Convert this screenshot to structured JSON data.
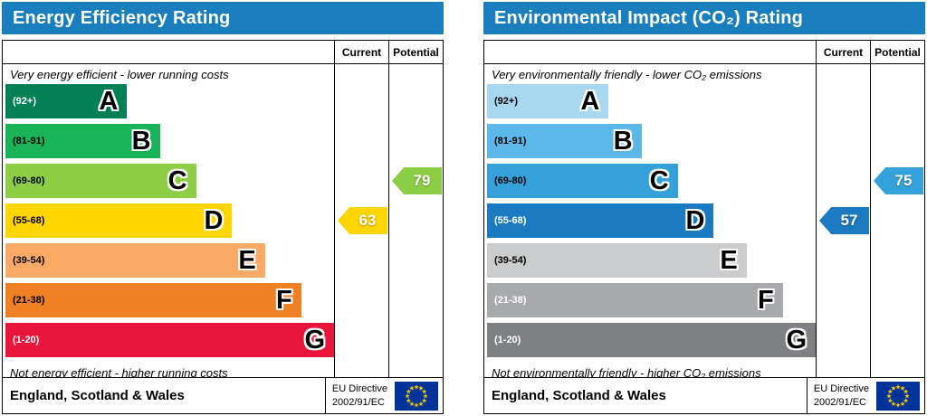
{
  "charts": [
    {
      "title": "Energy Efficiency Rating",
      "header_color": "#1a7dbe",
      "columns": {
        "current": "Current",
        "potential": "Potential"
      },
      "top_caption": "Very energy efficient - lower running costs",
      "bottom_caption": "Not energy efficient - higher running costs",
      "bands": [
        {
          "range": "(92+)",
          "letter": "A",
          "color": "#008054",
          "range_color": "#ffffff",
          "width": "37%"
        },
        {
          "range": "(81-91)",
          "letter": "B",
          "color": "#19b459",
          "range_color": "#000000",
          "width": "47%"
        },
        {
          "range": "(69-80)",
          "letter": "C",
          "color": "#8dce46",
          "range_color": "#000000",
          "width": "58%"
        },
        {
          "range": "(55-68)",
          "letter": "D",
          "color": "#ffd500",
          "range_color": "#000000",
          "width": "69%"
        },
        {
          "range": "(39-54)",
          "letter": "E",
          "color": "#fbaa65",
          "range_color": "#000000",
          "width": "79%"
        },
        {
          "range": "(21-38)",
          "letter": "F",
          "color": "#ef8023",
          "range_color": "#000000",
          "width": "90%"
        },
        {
          "range": "(1-20)",
          "letter": "G",
          "color": "#e9153b",
          "range_color": "#ffffff",
          "width": "100%"
        }
      ],
      "current": {
        "value": "63",
        "band_index": 3,
        "color": "#ffd500"
      },
      "potential": {
        "value": "79",
        "band_index": 2,
        "color": "#8dce46"
      },
      "footer": {
        "region": "England, Scotland & Wales",
        "directive_line1": "EU Directive",
        "directive_line2": "2002/91/EC"
      }
    },
    {
      "title": "Environmental Impact (CO₂) Rating",
      "header_color": "#1a7dbe",
      "columns": {
        "current": "Current",
        "potential": "Potential"
      },
      "top_caption": "Very environmentally friendly - lower CO₂ emissions",
      "bottom_caption": "Not environmentally friendly - higher CO₂ emissions",
      "bands": [
        {
          "range": "(92+)",
          "letter": "A",
          "color": "#a8d7f0",
          "range_color": "#000000",
          "width": "37%"
        },
        {
          "range": "(81-91)",
          "letter": "B",
          "color": "#5cb8e9",
          "range_color": "#000000",
          "width": "47%"
        },
        {
          "range": "(69-80)",
          "letter": "C",
          "color": "#35a1da",
          "range_color": "#000000",
          "width": "58%"
        },
        {
          "range": "(55-68)",
          "letter": "D",
          "color": "#1c7bc0",
          "range_color": "#ffffff",
          "width": "69%"
        },
        {
          "range": "(39-54)",
          "letter": "E",
          "color": "#cbcccd",
          "range_color": "#000000",
          "width": "79%"
        },
        {
          "range": "(21-38)",
          "letter": "F",
          "color": "#a8a9ad",
          "range_color": "#ffffff",
          "width": "90%"
        },
        {
          "range": "(1-20)",
          "letter": "G",
          "color": "#7e8083",
          "range_color": "#ffffff",
          "width": "100%"
        }
      ],
      "current": {
        "value": "57",
        "band_index": 3,
        "color": "#1c7bc0"
      },
      "potential": {
        "value": "75",
        "band_index": 2,
        "color": "#35a1da"
      },
      "footer": {
        "region": "England, Scotland & Wales",
        "directive_line1": "EU Directive",
        "directive_line2": "2002/91/EC"
      }
    }
  ],
  "chart_data": [
    {
      "type": "bar",
      "title": "Energy Efficiency Rating",
      "categories": [
        "A (92+)",
        "B (81-91)",
        "C (69-80)",
        "D (55-68)",
        "E (39-54)",
        "F (21-38)",
        "G (1-20)"
      ],
      "band_relative_widths_pct": [
        37,
        47,
        58,
        69,
        79,
        90,
        100
      ],
      "series": [
        {
          "name": "Current",
          "values": [
            63
          ],
          "band": "D"
        },
        {
          "name": "Potential",
          "values": [
            79
          ],
          "band": "C"
        }
      ],
      "scale": [
        1,
        100
      ],
      "annotations": [
        "Very energy efficient - lower running costs",
        "Not energy efficient - higher running costs"
      ]
    },
    {
      "type": "bar",
      "title": "Environmental Impact (CO₂) Rating",
      "categories": [
        "A (92+)",
        "B (81-91)",
        "C (69-80)",
        "D (55-68)",
        "E (39-54)",
        "F (21-38)",
        "G (1-20)"
      ],
      "band_relative_widths_pct": [
        37,
        47,
        58,
        69,
        79,
        90,
        100
      ],
      "series": [
        {
          "name": "Current",
          "values": [
            57
          ],
          "band": "D"
        },
        {
          "name": "Potential",
          "values": [
            75
          ],
          "band": "C"
        }
      ],
      "scale": [
        1,
        100
      ],
      "annotations": [
        "Very environmentally friendly - lower CO₂ emissions",
        "Not environmentally friendly - higher CO₂ emissions"
      ]
    }
  ]
}
